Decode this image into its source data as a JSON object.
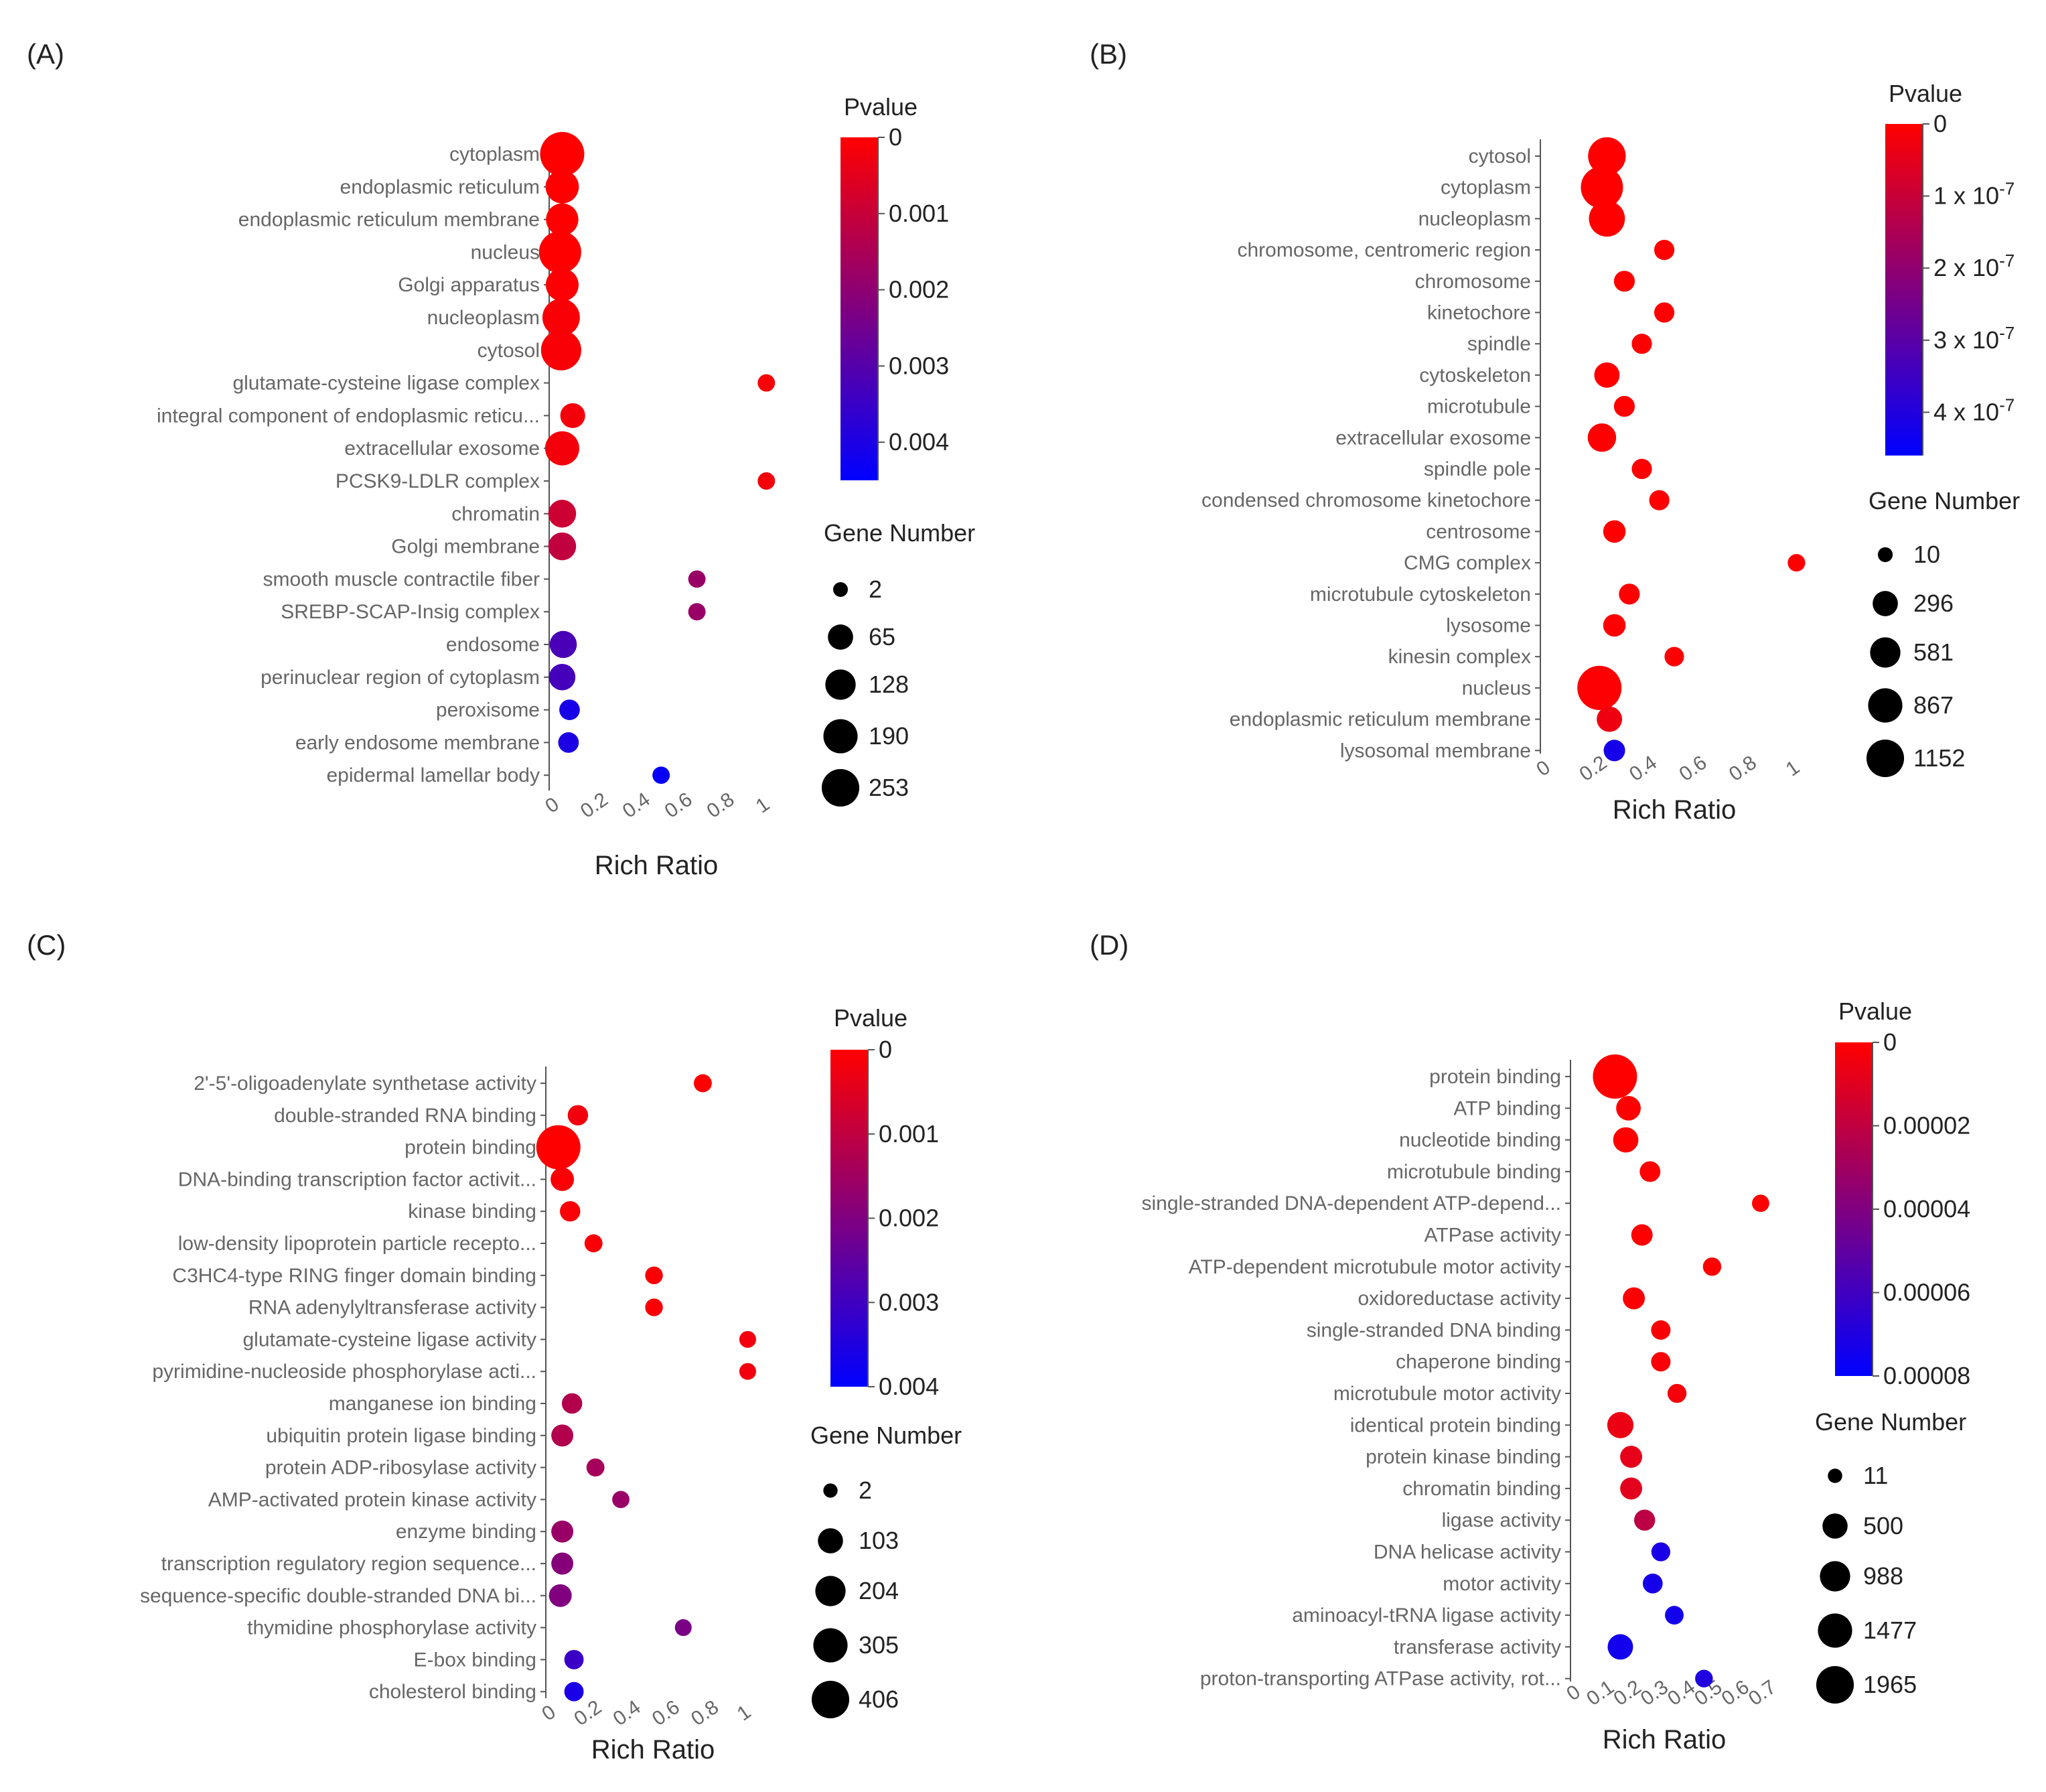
{
  "chart_data": [
    {
      "panel_label": "(A)",
      "type": "scatter",
      "xlabel": "Rich Ratio",
      "x_ticks": [
        "0",
        "0.2",
        "0.4",
        "0.6",
        "0.8",
        "1"
      ],
      "x_tick_values": [
        0,
        0.2,
        0.4,
        0.6,
        0.8,
        1
      ],
      "xlim": [
        0,
        1.05
      ],
      "color_title": "Pvalue",
      "color_range": [
        0,
        0.0045
      ],
      "color_ticks": [
        {
          "label": "0",
          "value": 0
        },
        {
          "label": "0.001",
          "value": 0.001
        },
        {
          "label": "0.002",
          "value": 0.002
        },
        {
          "label": "0.003",
          "value": 0.003
        },
        {
          "label": "0.004",
          "value": 0.004
        }
      ],
      "size_title": "Gene Number",
      "size_legend": [
        {
          "label": "2",
          "value": 2
        },
        {
          "label": "65",
          "value": 65
        },
        {
          "label": "128",
          "value": 128
        },
        {
          "label": "190",
          "value": 190
        },
        {
          "label": "253",
          "value": 253
        }
      ],
      "size_max": 253,
      "terms": [
        {
          "label": "cytoplasm",
          "x": 0.03,
          "pvalue": 0.0,
          "gene_number": 253
        },
        {
          "label": "endoplasmic reticulum",
          "x": 0.03,
          "pvalue": 0.0,
          "gene_number": 100
        },
        {
          "label": "endoplasmic reticulum membrane",
          "x": 0.03,
          "pvalue": 0.0,
          "gene_number": 90
        },
        {
          "label": "nucleus",
          "x": 0.02,
          "pvalue": 0.0,
          "gene_number": 220
        },
        {
          "label": "Golgi apparatus",
          "x": 0.03,
          "pvalue": 5e-05,
          "gene_number": 95
        },
        {
          "label": "nucleoplasm",
          "x": 0.025,
          "pvalue": 0.0001,
          "gene_number": 150
        },
        {
          "label": "cytosol",
          "x": 0.025,
          "pvalue": 0.0001,
          "gene_number": 190
        },
        {
          "label": "glutamate-cysteine ligase complex",
          "x": 1.0,
          "pvalue": 0.0001,
          "gene_number": 2
        },
        {
          "label": "integral component of endoplasmic reticu...",
          "x": 0.08,
          "pvalue": 0.0002,
          "gene_number": 30
        },
        {
          "label": "extracellular exosome",
          "x": 0.03,
          "pvalue": 0.0002,
          "gene_number": 110
        },
        {
          "label": "PCSK9-LDLR complex",
          "x": 1.0,
          "pvalue": 0.0002,
          "gene_number": 2
        },
        {
          "label": "chromatin",
          "x": 0.03,
          "pvalue": 0.0009,
          "gene_number": 50
        },
        {
          "label": "Golgi membrane",
          "x": 0.03,
          "pvalue": 0.0011,
          "gene_number": 50
        },
        {
          "label": "smooth muscle contractile fiber",
          "x": 0.67,
          "pvalue": 0.0018,
          "gene_number": 2
        },
        {
          "label": "SREBP-SCAP-Insig complex",
          "x": 0.67,
          "pvalue": 0.0018,
          "gene_number": 2
        },
        {
          "label": "endosome",
          "x": 0.035,
          "pvalue": 0.0032,
          "gene_number": 45
        },
        {
          "label": "perinuclear region of cytoplasm",
          "x": 0.03,
          "pvalue": 0.0033,
          "gene_number": 40
        },
        {
          "label": "peroxisome",
          "x": 0.065,
          "pvalue": 0.0041,
          "gene_number": 10
        },
        {
          "label": "early endosome membrane",
          "x": 0.06,
          "pvalue": 0.004,
          "gene_number": 10
        },
        {
          "label": "epidermal lamellar body",
          "x": 0.5,
          "pvalue": 0.0044,
          "gene_number": 2
        }
      ]
    },
    {
      "panel_label": "(B)",
      "type": "scatter",
      "xlabel": "Rich Ratio",
      "x_ticks": [
        "0",
        "0.2",
        "0.4",
        "0.6",
        "0.8",
        "1"
      ],
      "x_tick_values": [
        0,
        0.2,
        0.4,
        0.6,
        0.8,
        1
      ],
      "xlim": [
        0,
        1.05
      ],
      "color_title": "Pvalue",
      "color_range": [
        0,
        4.6e-07
      ],
      "color_ticks": [
        {
          "label": "0",
          "value": 0,
          "exp": ""
        },
        {
          "label": "1 x 10",
          "value": 1e-07,
          "exp": "-7"
        },
        {
          "label": "2 x 10",
          "value": 2e-07,
          "exp": "-7"
        },
        {
          "label": "3 x 10",
          "value": 3e-07,
          "exp": "-7"
        },
        {
          "label": "4 x 10",
          "value": 4e-07,
          "exp": "-7"
        }
      ],
      "size_title": "Gene Number",
      "size_legend": [
        {
          "label": "10",
          "value": 10
        },
        {
          "label": "296",
          "value": 296
        },
        {
          "label": "581",
          "value": 581
        },
        {
          "label": "867",
          "value": 867
        },
        {
          "label": "1152",
          "value": 1152
        }
      ],
      "size_max": 1152,
      "terms": [
        {
          "label": "cytosol",
          "x": 0.24,
          "pvalue": 0.0,
          "gene_number": 700
        },
        {
          "label": "cytoplasm",
          "x": 0.22,
          "pvalue": 0.0,
          "gene_number": 1000
        },
        {
          "label": "nucleoplasm",
          "x": 0.24,
          "pvalue": 0.0,
          "gene_number": 600
        },
        {
          "label": "chromosome, centromeric region",
          "x": 0.47,
          "pvalue": 0.0,
          "gene_number": 40
        },
        {
          "label": "chromosome",
          "x": 0.31,
          "pvalue": 0.0,
          "gene_number": 50
        },
        {
          "label": "kinetochore",
          "x": 0.47,
          "pvalue": 0.0,
          "gene_number": 40
        },
        {
          "label": "spindle",
          "x": 0.38,
          "pvalue": 0.0,
          "gene_number": 40
        },
        {
          "label": "cytoskeleton",
          "x": 0.24,
          "pvalue": 0.0,
          "gene_number": 150
        },
        {
          "label": "microtubule",
          "x": 0.31,
          "pvalue": 0.0,
          "gene_number": 50
        },
        {
          "label": "extracellular exosome",
          "x": 0.22,
          "pvalue": 0.0,
          "gene_number": 250
        },
        {
          "label": "spindle pole",
          "x": 0.38,
          "pvalue": 0.0,
          "gene_number": 40
        },
        {
          "label": "condensed chromosome kinetochore",
          "x": 0.45,
          "pvalue": 0.0,
          "gene_number": 40
        },
        {
          "label": "centrosome",
          "x": 0.27,
          "pvalue": 0.0,
          "gene_number": 80
        },
        {
          "label": "CMG complex",
          "x": 1.0,
          "pvalue": 0.0,
          "gene_number": 10
        },
        {
          "label": "microtubule cytoskeleton",
          "x": 0.33,
          "pvalue": 0.0,
          "gene_number": 50
        },
        {
          "label": "lysosome",
          "x": 0.27,
          "pvalue": 1e-09,
          "gene_number": 80
        },
        {
          "label": "kinesin complex",
          "x": 0.51,
          "pvalue": 2e-09,
          "gene_number": 30
        },
        {
          "label": "nucleus",
          "x": 0.21,
          "pvalue": 5e-09,
          "gene_number": 1152
        },
        {
          "label": "endoplasmic reticulum membrane",
          "x": 0.25,
          "pvalue": 3e-08,
          "gene_number": 150
        },
        {
          "label": "lysosomal membrane",
          "x": 0.27,
          "pvalue": 4.2e-07,
          "gene_number": 60
        }
      ]
    },
    {
      "panel_label": "(C)",
      "type": "scatter",
      "xlabel": "Rich Ratio",
      "x_ticks": [
        "0",
        "0.2",
        "0.4",
        "0.6",
        "0.8",
        "1"
      ],
      "x_tick_values": [
        0,
        0.2,
        0.4,
        0.6,
        0.8,
        1
      ],
      "xlim": [
        0,
        1.05
      ],
      "color_title": "Pvalue",
      "color_range": [
        0,
        0.004
      ],
      "color_ticks": [
        {
          "label": "0",
          "value": 0
        },
        {
          "label": "0.001",
          "value": 0.001
        },
        {
          "label": "0.002",
          "value": 0.002
        },
        {
          "label": "0.003",
          "value": 0.003
        },
        {
          "label": "0.004",
          "value": 0.004
        }
      ],
      "size_title": "Gene Number",
      "size_legend": [
        {
          "label": "2",
          "value": 2
        },
        {
          "label": "103",
          "value": 103
        },
        {
          "label": "204",
          "value": 204
        },
        {
          "label": "305",
          "value": 305
        },
        {
          "label": "406",
          "value": 406
        }
      ],
      "size_max": 406,
      "terms": [
        {
          "label": "2'-5'-oligoadenylate synthetase activity",
          "x": 0.77,
          "pvalue": 0.0,
          "gene_number": 5
        },
        {
          "label": "double-stranded RNA binding",
          "x": 0.13,
          "pvalue": 0.0002,
          "gene_number": 15
        },
        {
          "label": "protein binding",
          "x": 0.03,
          "pvalue": 0.0,
          "gene_number": 406
        },
        {
          "label": "DNA-binding transcription factor activit...",
          "x": 0.05,
          "pvalue": 0.0001,
          "gene_number": 35
        },
        {
          "label": "kinase binding",
          "x": 0.09,
          "pvalue": 0.0001,
          "gene_number": 15
        },
        {
          "label": "low-density lipoprotein particle recepto...",
          "x": 0.21,
          "pvalue": 0.0001,
          "gene_number": 5
        },
        {
          "label": "C3HC4-type RING finger domain binding",
          "x": 0.52,
          "pvalue": 0.0001,
          "gene_number": 4
        },
        {
          "label": "RNA adenylyltransferase activity",
          "x": 0.52,
          "pvalue": 0.0001,
          "gene_number": 4
        },
        {
          "label": "glutamate-cysteine ligase activity",
          "x": 1.0,
          "pvalue": 0.0002,
          "gene_number": 2
        },
        {
          "label": "pyrimidine-nucleoside phosphorylase acti...",
          "x": 1.0,
          "pvalue": 0.0002,
          "gene_number": 2
        },
        {
          "label": "manganese ion binding",
          "x": 0.1,
          "pvalue": 0.0012,
          "gene_number": 15
        },
        {
          "label": "ubiquitin protein ligase binding",
          "x": 0.05,
          "pvalue": 0.0012,
          "gene_number": 25
        },
        {
          "label": "protein ADP-ribosylase activity",
          "x": 0.22,
          "pvalue": 0.0014,
          "gene_number": 5
        },
        {
          "label": "AMP-activated protein kinase activity",
          "x": 0.35,
          "pvalue": 0.0016,
          "gene_number": 3
        },
        {
          "label": "enzyme binding",
          "x": 0.05,
          "pvalue": 0.0016,
          "gene_number": 25
        },
        {
          "label": "transcription regulatory region sequence...",
          "x": 0.05,
          "pvalue": 0.0019,
          "gene_number": 25
        },
        {
          "label": "sequence-specific double-stranded DNA bi...",
          "x": 0.04,
          "pvalue": 0.002,
          "gene_number": 30
        },
        {
          "label": "thymidine phosphorylase activity",
          "x": 0.67,
          "pvalue": 0.0021,
          "gene_number": 2
        },
        {
          "label": "E-box binding",
          "x": 0.11,
          "pvalue": 0.0031,
          "gene_number": 10
        },
        {
          "label": "cholesterol binding",
          "x": 0.11,
          "pvalue": 0.0036,
          "gene_number": 10
        }
      ]
    },
    {
      "panel_label": "(D)",
      "type": "scatter",
      "xlabel": "Rich Ratio",
      "x_ticks": [
        "0",
        "0.1",
        "0.2",
        "0.3",
        "0.4",
        "0.5",
        "0.6",
        "0.7"
      ],
      "x_tick_values": [
        0,
        0.1,
        0.2,
        0.3,
        0.4,
        0.5,
        0.6,
        0.7
      ],
      "xlim": [
        0,
        0.72
      ],
      "color_title": "Pvalue",
      "color_range": [
        0,
        8e-05
      ],
      "color_ticks": [
        {
          "label": "0",
          "value": 0
        },
        {
          "label": "0.00002",
          "value": 2e-05
        },
        {
          "label": "0.00004",
          "value": 4e-05
        },
        {
          "label": "0.00006",
          "value": 6e-05
        },
        {
          "label": "0.00008",
          "value": 8e-05
        }
      ],
      "size_title": "Gene Number",
      "size_legend": [
        {
          "label": "11",
          "value": 11
        },
        {
          "label": "500",
          "value": 500
        },
        {
          "label": "988",
          "value": 988
        },
        {
          "label": "1477",
          "value": 1477
        },
        {
          "label": "1965",
          "value": 1965
        }
      ],
      "size_max": 1965,
      "terms": [
        {
          "label": "protein binding",
          "x": 0.14,
          "pvalue": 0.0,
          "gene_number": 1965
        },
        {
          "label": "ATP binding",
          "x": 0.19,
          "pvalue": 0.0,
          "gene_number": 220
        },
        {
          "label": "nucleotide binding",
          "x": 0.18,
          "pvalue": 0.0,
          "gene_number": 250
        },
        {
          "label": "microtubule binding",
          "x": 0.27,
          "pvalue": 0.0,
          "gene_number": 80
        },
        {
          "label": "single-stranded DNA-dependent ATP-depend...",
          "x": 0.68,
          "pvalue": 0.0,
          "gene_number": 15
        },
        {
          "label": "ATPase activity",
          "x": 0.24,
          "pvalue": 0.0,
          "gene_number": 100
        },
        {
          "label": "ATP-dependent microtubule motor activity",
          "x": 0.5,
          "pvalue": 0.0,
          "gene_number": 30
        },
        {
          "label": "oxidoreductase activity",
          "x": 0.21,
          "pvalue": 1e-06,
          "gene_number": 120
        },
        {
          "label": "single-stranded DNA binding",
          "x": 0.31,
          "pvalue": 2e-06,
          "gene_number": 50
        },
        {
          "label": "chaperone binding",
          "x": 0.31,
          "pvalue": 2e-06,
          "gene_number": 50
        },
        {
          "label": "microtubule motor activity",
          "x": 0.37,
          "pvalue": 3e-06,
          "gene_number": 40
        },
        {
          "label": "identical protein binding",
          "x": 0.16,
          "pvalue": 6e-06,
          "gene_number": 300
        },
        {
          "label": "protein kinase binding",
          "x": 0.2,
          "pvalue": 8e-06,
          "gene_number": 120
        },
        {
          "label": "chromatin binding",
          "x": 0.2,
          "pvalue": 9e-06,
          "gene_number": 120
        },
        {
          "label": "ligase activity",
          "x": 0.25,
          "pvalue": 2.1e-05,
          "gene_number": 90
        },
        {
          "label": "DNA helicase activity",
          "x": 0.31,
          "pvalue": 7.2e-05,
          "gene_number": 40
        },
        {
          "label": "motor activity",
          "x": 0.28,
          "pvalue": 7.3e-05,
          "gene_number": 60
        },
        {
          "label": "aminoacyl-tRNA ligase activity",
          "x": 0.36,
          "pvalue": 7.4e-05,
          "gene_number": 35
        },
        {
          "label": "transferase activity",
          "x": 0.16,
          "pvalue": 7.4e-05,
          "gene_number": 260
        },
        {
          "label": "proton-transporting ATPase activity, rot...",
          "x": 0.47,
          "pvalue": 7e-05,
          "gene_number": 20
        }
      ]
    }
  ]
}
